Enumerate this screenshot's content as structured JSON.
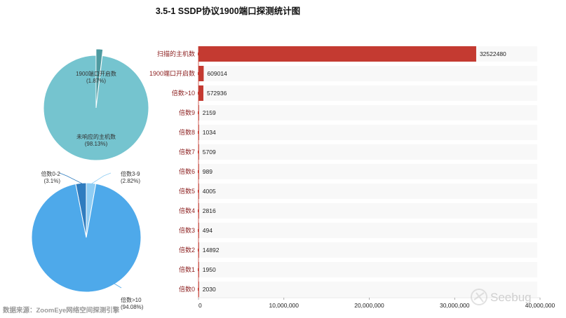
{
  "title": "3.5-1 SSDP协议1900端口探测统计图",
  "source": "数据来源：ZoomEye网络空间探测引擎",
  "watermark": "Seebug",
  "colors": {
    "bar": "#c43a31",
    "row_bg": "#f8f8f8",
    "pie1_main": "#75c4cf",
    "pie1_small": "#4e9aa0",
    "pie2_main": "#4ea9ea",
    "pie2_a": "#2f7cbf",
    "pie2_b": "#8fcdf4"
  },
  "chart_data": [
    {
      "type": "bar",
      "orientation": "horizontal",
      "categories": [
        "扫描的主机数",
        "1900端口开启数",
        "倍数>10",
        "倍数9",
        "倍数8",
        "倍数7",
        "倍数6",
        "倍数5",
        "倍数4",
        "倍数3",
        "倍数2",
        "倍数1",
        "倍数0"
      ],
      "values": [
        32522480,
        609014,
        572936,
        2159,
        1034,
        5709,
        989,
        4005,
        2816,
        494,
        14892,
        1950,
        2030
      ],
      "xlim": [
        0,
        40000000
      ],
      "xticks": [
        "0",
        "10,000,000",
        "20,000,000",
        "30,000,000",
        "40,000,000"
      ],
      "xtick_values": [
        0,
        10000000,
        20000000,
        30000000,
        40000000
      ]
    },
    {
      "type": "pie",
      "slices": [
        {
          "label": "1900端口开启数",
          "percent_label": "(1.87%)",
          "value": 1.87
        },
        {
          "label": "未响应的主机数",
          "percent_label": "(98.13%)",
          "value": 98.13
        }
      ]
    },
    {
      "type": "pie",
      "slices": [
        {
          "label": "倍数0-2",
          "percent_label": "(3.1%)",
          "value": 3.1
        },
        {
          "label": "倍数3-9",
          "percent_label": "(2.82%)",
          "value": 2.82
        },
        {
          "label": "倍数>10",
          "percent_label": "(94.08%)",
          "value": 94.08
        }
      ]
    }
  ]
}
